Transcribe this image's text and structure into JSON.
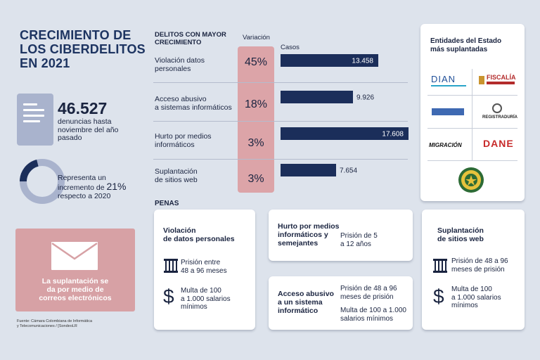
{
  "header": {
    "title_lines": [
      "CRECIMIENTO DE",
      "LOS CIBERDELITOS",
      "EN 2021"
    ]
  },
  "left_panel": {
    "stat_value": "46.527",
    "stat_desc_lines": [
      "denuncias hasta",
      "noviembre del año",
      "pasado"
    ],
    "donut_text_lines": [
      "Representa un",
      "incremento de",
      "respecto a 2020"
    ],
    "donut_value": "21%",
    "donut_fraction": 0.21,
    "mail_text_lines": [
      "La suplantación se",
      "da por medio de",
      "correos electrónicos"
    ],
    "source_lines": [
      "Fuente: Cámara Colombiana de Informática",
      "y Telecomunicaciones / [SondeoLR"
    ]
  },
  "chart_data": {
    "type": "bar",
    "title_lines": [
      "DELITOS CON MAYOR",
      "CRECIMIENTO"
    ],
    "variation_header": "Variación",
    "cases_header": "Casos",
    "categories": [
      [
        "Violación datos",
        "personales"
      ],
      [
        "Acceso abusivo",
        "a sistemas informáticos"
      ],
      [
        "Hurto por medios",
        "informáticos"
      ],
      [
        "Suplantación",
        "de sitios web"
      ]
    ],
    "variation": [
      "45%",
      "18%",
      "3%",
      "3%"
    ],
    "values": [
      13458,
      9926,
      17608,
      7654
    ],
    "value_labels": [
      "13.458",
      "9.926",
      "17.608",
      "7.654"
    ],
    "xlim": [
      0,
      17608
    ],
    "bar_color": "#1b2e5a",
    "accent_color": "#dca4a8"
  },
  "entities": {
    "title_lines": [
      "Entidades del Estado",
      "más suplantadas"
    ],
    "logos": [
      "DIAN",
      "FISCALÍA",
      "REGISTRADURÍA",
      "MIGRACIÓN",
      "DANE"
    ]
  },
  "penalties": {
    "heading": "PENAS",
    "violacion": {
      "title_lines": [
        "Violación",
        "de datos personales"
      ],
      "prison_lines": [
        "Prisión entre",
        "48 a 96 meses"
      ],
      "fine_lines": [
        "Multa de 100",
        "a 1.000 salarios",
        "mínimos"
      ]
    },
    "hurto": {
      "title_lines": [
        "Hurto por medios",
        "informáticos y",
        "semejantes"
      ],
      "prison_lines": [
        "Prisión de 5",
        "a 12 años"
      ]
    },
    "acceso": {
      "title_lines": [
        "Acceso abusivo",
        "a un sistema",
        "informático"
      ],
      "prison_lines": [
        "Prisión de 48 a 96",
        "meses de prisión"
      ],
      "fine_lines": [
        "Multa de 100 a 1.000",
        "salarios mínimos"
      ]
    },
    "suplantacion": {
      "title_lines": [
        "Suplantación",
        "de sitios web"
      ],
      "prison_lines": [
        "Prisión de 48 a 96",
        "meses de prisión"
      ],
      "fine_lines": [
        "Multa de 100",
        "a 1.000 salarios",
        "mínimos"
      ]
    }
  }
}
